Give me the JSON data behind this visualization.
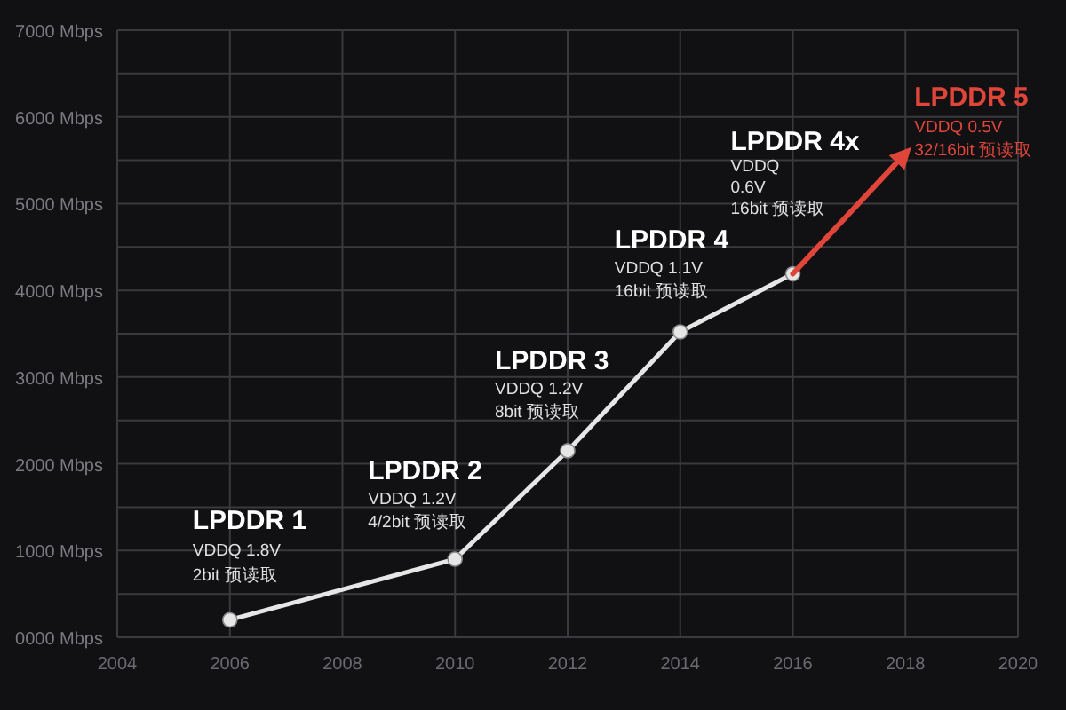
{
  "chart_data": {
    "type": "line",
    "xlim": [
      2004,
      2020
    ],
    "xticks": [
      2004,
      2006,
      2008,
      2010,
      2012,
      2014,
      2016,
      2018,
      2020
    ],
    "ylim": [
      0,
      7000
    ],
    "yticks": [
      {
        "value": 0,
        "label": "0000 Mbps"
      },
      {
        "value": 500,
        "label": null
      },
      {
        "value": 1000,
        "label": "1000 Mbps"
      },
      {
        "value": 1500,
        "label": null
      },
      {
        "value": 2000,
        "label": "2000 Mbps"
      },
      {
        "value": 2500,
        "label": null
      },
      {
        "value": 3000,
        "label": "3000 Mbps"
      },
      {
        "value": 3500,
        "label": null
      },
      {
        "value": 4000,
        "label": "4000 Mbps"
      },
      {
        "value": 4500,
        "label": null
      },
      {
        "value": 5000,
        "label": "5000 Mbps"
      },
      {
        "value": 5500,
        "label": null
      },
      {
        "value": 6000,
        "label": "6000 Mbps"
      },
      {
        "value": 6500,
        "label": null
      },
      {
        "value": 7000,
        "label": "7000 Mbps"
      }
    ],
    "grid": true,
    "series": [
      {
        "color": "#e6e6e6",
        "marker": "circle",
        "x": [
          2006,
          2010,
          2012,
          2014,
          2016
        ],
        "values": [
          200,
          900,
          2150,
          3520,
          4190
        ]
      },
      {
        "color": "#e0453a",
        "marker": "none",
        "x": [
          2016,
          2018
        ],
        "values": [
          4190,
          5580
        ]
      }
    ],
    "annotations": [
      "LPDDR 1",
      "VDDQ 1.8V",
      "2bit 预读取",
      "LPDDR 2",
      "VDDQ 1.2V",
      "4/2bit 预读取",
      "LPDDR 3",
      "VDDQ 1.2V",
      "8bit 预读取",
      "LPDDR 4",
      "VDDQ 1.1V",
      "16bit 预读取",
      "LPDDR 4x",
      "VDDQ",
      "0.6V",
      "16bit 预读取",
      "LPDDR 5",
      "VDDQ 0.5V",
      "32/16bit 预读取"
    ]
  }
}
